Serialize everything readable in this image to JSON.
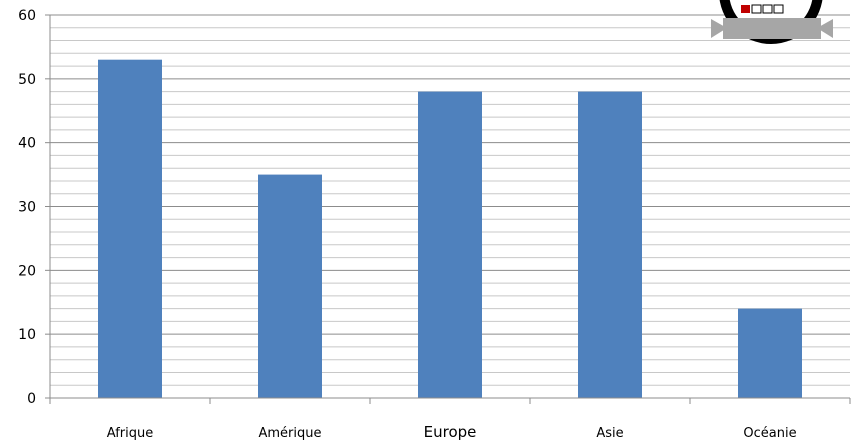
{
  "chart_data": {
    "type": "bar",
    "title": "",
    "xlabel": "",
    "ylabel": "",
    "categories": [
      "Afrique",
      "Amérique",
      "Europe",
      "Asie",
      "Océanie"
    ],
    "values": [
      53,
      35,
      48,
      48,
      14
    ],
    "ylim": [
      0,
      60
    ],
    "yticks": [
      "0",
      "10",
      "20",
      "30",
      "40",
      "50",
      "60"
    ],
    "grid": true,
    "legend": "none",
    "bar_color": "#4F81BD"
  },
  "badge": {
    "icon": "medal-badge-icon",
    "ribbon_color": "#A6A6A6",
    "frame_color": "#000000",
    "accent_color": "#C00000"
  }
}
